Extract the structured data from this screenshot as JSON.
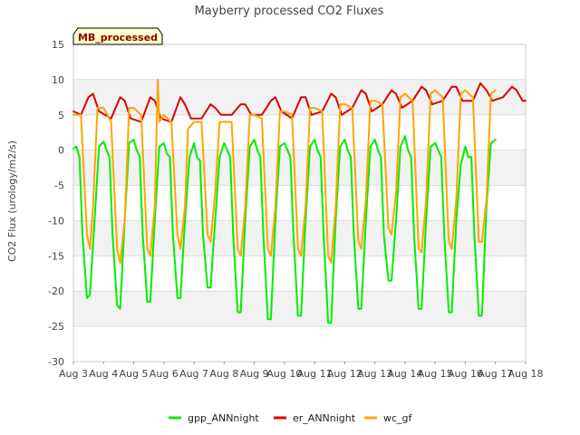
{
  "chart_data": {
    "type": "line",
    "title": "Mayberry processed CO2 Fluxes",
    "xlabel": "",
    "ylabel": "CO2 Flux (urology/m2/s)",
    "badge": "MB_processed",
    "ylim": [
      -30,
      15
    ],
    "y_ticks": [
      15,
      10,
      5,
      0,
      -5,
      -10,
      -15,
      -20,
      -25,
      -30
    ],
    "xlim": [
      0,
      15
    ],
    "x_tick_labels": [
      "Aug 3",
      "Aug 4",
      "Aug 5",
      "Aug 6",
      "Aug 7",
      "Aug 8",
      "Aug 9",
      "Aug 10",
      "Aug 11",
      "Aug 12",
      "Aug 13",
      "Aug 14",
      "Aug 15",
      "Aug 16",
      "Aug 17",
      "Aug 18"
    ],
    "grid": "horizontal bands",
    "legend_position": "bottom",
    "series": [
      {
        "name": "gpp_ANNnight",
        "color": "#00ee00",
        "values": [
          [
            0.0,
            0.2
          ],
          [
            0.1,
            0.5
          ],
          [
            0.2,
            -1.0
          ],
          [
            0.3,
            -12.0
          ],
          [
            0.45,
            -21.0
          ],
          [
            0.55,
            -20.5
          ],
          [
            0.7,
            -10.0
          ],
          [
            0.85,
            0.5
          ],
          [
            1.0,
            1.2
          ],
          [
            1.1,
            0.0
          ],
          [
            1.2,
            -1.0
          ],
          [
            1.3,
            -12.0
          ],
          [
            1.45,
            -22.0
          ],
          [
            1.55,
            -22.5
          ],
          [
            1.7,
            -10.0
          ],
          [
            1.85,
            1.0
          ],
          [
            2.0,
            1.5
          ],
          [
            2.1,
            0.0
          ],
          [
            2.2,
            -1.0
          ],
          [
            2.3,
            -12.0
          ],
          [
            2.45,
            -21.5
          ],
          [
            2.55,
            -21.5
          ],
          [
            2.7,
            -10.0
          ],
          [
            2.85,
            0.5
          ],
          [
            3.0,
            1.0
          ],
          [
            3.1,
            -0.5
          ],
          [
            3.2,
            -1.0
          ],
          [
            3.3,
            -12.0
          ],
          [
            3.45,
            -21.0
          ],
          [
            3.55,
            -21.0
          ],
          [
            3.7,
            -10.0
          ],
          [
            3.85,
            -1.0
          ],
          [
            4.0,
            1.0
          ],
          [
            4.1,
            -1.0
          ],
          [
            4.2,
            -1.5
          ],
          [
            4.3,
            -12.0
          ],
          [
            4.45,
            -19.5
          ],
          [
            4.55,
            -19.5
          ],
          [
            4.7,
            -10.0
          ],
          [
            4.85,
            -1.0
          ],
          [
            5.0,
            1.0
          ],
          [
            5.1,
            0.0
          ],
          [
            5.2,
            -1.0
          ],
          [
            5.3,
            -12.0
          ],
          [
            5.45,
            -23.0
          ],
          [
            5.55,
            -23.0
          ],
          [
            5.7,
            -10.0
          ],
          [
            5.85,
            0.5
          ],
          [
            6.0,
            1.5
          ],
          [
            6.1,
            0.0
          ],
          [
            6.2,
            -1.0
          ],
          [
            6.3,
            -12.0
          ],
          [
            6.45,
            -24.0
          ],
          [
            6.55,
            -24.0
          ],
          [
            6.7,
            -10.0
          ],
          [
            6.85,
            0.5
          ],
          [
            7.0,
            1.0
          ],
          [
            7.1,
            0.0
          ],
          [
            7.2,
            -1.0
          ],
          [
            7.3,
            -12.0
          ],
          [
            7.45,
            -23.5
          ],
          [
            7.55,
            -23.5
          ],
          [
            7.7,
            -10.0
          ],
          [
            7.85,
            0.5
          ],
          [
            8.0,
            1.5
          ],
          [
            8.1,
            0.0
          ],
          [
            8.2,
            -1.0
          ],
          [
            8.3,
            -12.0
          ],
          [
            8.45,
            -24.5
          ],
          [
            8.55,
            -24.5
          ],
          [
            8.7,
            -10.0
          ],
          [
            8.85,
            0.5
          ],
          [
            9.0,
            1.5
          ],
          [
            9.1,
            0.0
          ],
          [
            9.2,
            -1.0
          ],
          [
            9.3,
            -12.0
          ],
          [
            9.45,
            -22.5
          ],
          [
            9.55,
            -22.5
          ],
          [
            9.7,
            -10.0
          ],
          [
            9.85,
            0.5
          ],
          [
            10.0,
            1.5
          ],
          [
            10.1,
            0.0
          ],
          [
            10.2,
            -1.0
          ],
          [
            10.3,
            -12.0
          ],
          [
            10.45,
            -18.5
          ],
          [
            10.55,
            -18.5
          ],
          [
            10.7,
            -10.0
          ],
          [
            10.85,
            0.5
          ],
          [
            11.0,
            2.0
          ],
          [
            11.1,
            0.0
          ],
          [
            11.2,
            -1.0
          ],
          [
            11.3,
            -12.0
          ],
          [
            11.45,
            -22.5
          ],
          [
            11.55,
            -22.5
          ],
          [
            11.7,
            -10.0
          ],
          [
            11.85,
            0.5
          ],
          [
            12.0,
            1.0
          ],
          [
            12.1,
            0.0
          ],
          [
            12.2,
            -1.0
          ],
          [
            12.3,
            -12.0
          ],
          [
            12.45,
            -23.0
          ],
          [
            12.55,
            -23.0
          ],
          [
            12.7,
            -10.0
          ],
          [
            12.85,
            -2.0
          ],
          [
            13.0,
            0.5
          ],
          [
            13.1,
            -1.0
          ],
          [
            13.2,
            -1.0
          ],
          [
            13.3,
            -12.0
          ],
          [
            13.45,
            -23.5
          ],
          [
            13.55,
            -23.5
          ],
          [
            13.7,
            -8.0
          ],
          [
            13.85,
            1.0
          ],
          [
            14.0,
            1.5
          ]
        ]
      },
      {
        "name": "er_ANNnight",
        "color": "#dd0000",
        "values": [
          [
            0.0,
            5.5
          ],
          [
            0.25,
            5.0
          ],
          [
            0.5,
            7.5
          ],
          [
            0.65,
            8.0
          ],
          [
            0.85,
            5.5
          ],
          [
            1.25,
            4.5
          ],
          [
            1.55,
            7.5
          ],
          [
            1.7,
            7.0
          ],
          [
            1.9,
            4.5
          ],
          [
            2.25,
            4.0
          ],
          [
            2.55,
            7.5
          ],
          [
            2.7,
            7.0
          ],
          [
            2.9,
            4.5
          ],
          [
            3.25,
            4.0
          ],
          [
            3.55,
            7.5
          ],
          [
            3.7,
            6.5
          ],
          [
            3.9,
            4.5
          ],
          [
            4.25,
            4.5
          ],
          [
            4.55,
            6.5
          ],
          [
            4.7,
            6.0
          ],
          [
            4.9,
            5.0
          ],
          [
            5.25,
            5.0
          ],
          [
            5.55,
            6.5
          ],
          [
            5.7,
            6.5
          ],
          [
            5.9,
            5.0
          ],
          [
            6.25,
            5.0
          ],
          [
            6.55,
            7.0
          ],
          [
            6.7,
            7.5
          ],
          [
            6.9,
            5.5
          ],
          [
            7.25,
            4.5
          ],
          [
            7.55,
            7.5
          ],
          [
            7.7,
            7.5
          ],
          [
            7.9,
            5.0
          ],
          [
            8.25,
            5.5
          ],
          [
            8.55,
            8.0
          ],
          [
            8.7,
            7.5
          ],
          [
            8.9,
            5.0
          ],
          [
            9.25,
            6.0
          ],
          [
            9.55,
            8.5
          ],
          [
            9.7,
            8.0
          ],
          [
            9.9,
            5.5
          ],
          [
            10.25,
            6.5
          ],
          [
            10.55,
            8.5
          ],
          [
            10.7,
            8.0
          ],
          [
            10.9,
            6.0
          ],
          [
            11.25,
            7.0
          ],
          [
            11.55,
            9.0
          ],
          [
            11.7,
            8.5
          ],
          [
            11.9,
            6.5
          ],
          [
            12.25,
            7.0
          ],
          [
            12.55,
            9.0
          ],
          [
            12.7,
            9.0
          ],
          [
            12.9,
            7.0
          ],
          [
            13.25,
            7.0
          ],
          [
            13.5,
            9.5
          ],
          [
            13.7,
            8.5
          ],
          [
            13.9,
            7.0
          ],
          [
            14.25,
            7.5
          ],
          [
            14.55,
            9.0
          ],
          [
            14.7,
            8.5
          ],
          [
            14.9,
            7.0
          ],
          [
            15.0,
            7.0
          ]
        ]
      },
      {
        "name": "wc_gf",
        "color": "#ffa500",
        "values": [
          [
            0.0,
            5.0
          ],
          [
            0.25,
            5.0
          ],
          [
            0.45,
            -12.0
          ],
          [
            0.55,
            -14.0
          ],
          [
            0.65,
            -8.0
          ],
          [
            0.8,
            6.0
          ],
          [
            1.0,
            6.0
          ],
          [
            1.25,
            4.0
          ],
          [
            1.45,
            -14.0
          ],
          [
            1.55,
            -16.0
          ],
          [
            1.7,
            -10.0
          ],
          [
            1.85,
            6.0
          ],
          [
            2.0,
            6.0
          ],
          [
            2.25,
            5.0
          ],
          [
            2.45,
            -14.0
          ],
          [
            2.55,
            -15.0
          ],
          [
            2.7,
            -8.0
          ],
          [
            2.8,
            10.0
          ],
          [
            2.85,
            4.0
          ],
          [
            3.0,
            5.0
          ],
          [
            3.25,
            4.0
          ],
          [
            3.45,
            -12.0
          ],
          [
            3.55,
            -14.0
          ],
          [
            3.7,
            -8.0
          ],
          [
            3.8,
            3.0
          ],
          [
            4.0,
            4.0
          ],
          [
            4.25,
            4.0
          ],
          [
            4.45,
            -12.0
          ],
          [
            4.55,
            -13.0
          ],
          [
            4.7,
            -6.0
          ],
          [
            4.85,
            4.0
          ],
          [
            5.0,
            4.0
          ],
          [
            5.25,
            4.0
          ],
          [
            5.45,
            -14.0
          ],
          [
            5.55,
            -15.0
          ],
          [
            5.7,
            -8.0
          ],
          [
            5.85,
            5.0
          ],
          [
            6.0,
            5.0
          ],
          [
            6.25,
            4.5
          ],
          [
            6.45,
            -14.0
          ],
          [
            6.55,
            -15.0
          ],
          [
            6.7,
            -8.0
          ],
          [
            6.85,
            5.5
          ],
          [
            7.0,
            5.5
          ],
          [
            7.25,
            5.0
          ],
          [
            7.45,
            -14.0
          ],
          [
            7.55,
            -15.0
          ],
          [
            7.7,
            -8.0
          ],
          [
            7.85,
            6.0
          ],
          [
            8.0,
            6.0
          ],
          [
            8.25,
            5.5
          ],
          [
            8.45,
            -15.0
          ],
          [
            8.55,
            -16.0
          ],
          [
            8.7,
            -8.0
          ],
          [
            8.85,
            6.5
          ],
          [
            9.0,
            6.5
          ],
          [
            9.25,
            6.0
          ],
          [
            9.45,
            -13.0
          ],
          [
            9.55,
            -14.0
          ],
          [
            9.7,
            -7.0
          ],
          [
            9.85,
            7.0
          ],
          [
            10.0,
            7.0
          ],
          [
            10.25,
            6.5
          ],
          [
            10.45,
            -11.0
          ],
          [
            10.55,
            -12.0
          ],
          [
            10.7,
            -6.0
          ],
          [
            10.85,
            7.5
          ],
          [
            11.0,
            8.0
          ],
          [
            11.25,
            7.0
          ],
          [
            11.45,
            -14.0
          ],
          [
            11.55,
            -14.5
          ],
          [
            11.7,
            -7.0
          ],
          [
            11.85,
            8.0
          ],
          [
            12.0,
            8.5
          ],
          [
            12.25,
            7.5
          ],
          [
            12.45,
            -13.0
          ],
          [
            12.55,
            -14.0
          ],
          [
            12.7,
            -7.0
          ],
          [
            12.85,
            8.0
          ],
          [
            13.0,
            8.5
          ],
          [
            13.25,
            7.5
          ],
          [
            13.45,
            -13.0
          ],
          [
            13.55,
            -13.0
          ],
          [
            13.7,
            -7.0
          ],
          [
            13.85,
            8.0
          ],
          [
            14.0,
            8.5
          ]
        ]
      }
    ]
  }
}
